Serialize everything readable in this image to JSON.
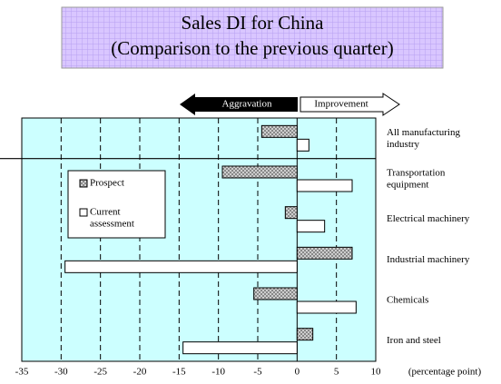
{
  "chart_data": {
    "type": "barh",
    "title": "Sales DI for China",
    "subtitle": "(Comparison to the previous quarter)",
    "annotations": [
      "Aggravation",
      "Improvement"
    ],
    "xlabel": "(percentage point)",
    "categories": [
      "All manufacturing\nindustry",
      "Transportation\nequipment",
      "Electrical machinery",
      "Industrial machinery",
      "Chemicals",
      "Iron and steel"
    ],
    "series": [
      {
        "name": "Prospect",
        "color": "#c0c0c0",
        "values": [
          -4.5,
          -9.5,
          -1.5,
          7,
          -5.5,
          2
        ]
      },
      {
        "name": "Current\nassessment",
        "color": "#ffffff",
        "values": [
          1.5,
          7,
          3.5,
          -29.5,
          7.5,
          -14.5
        ]
      }
    ],
    "xlim": [
      -35,
      10
    ],
    "xticks": [
      -35,
      -30,
      -25,
      -20,
      -15,
      -10,
      -5,
      0,
      5,
      10
    ],
    "grid": true,
    "legend": "upper left"
  }
}
